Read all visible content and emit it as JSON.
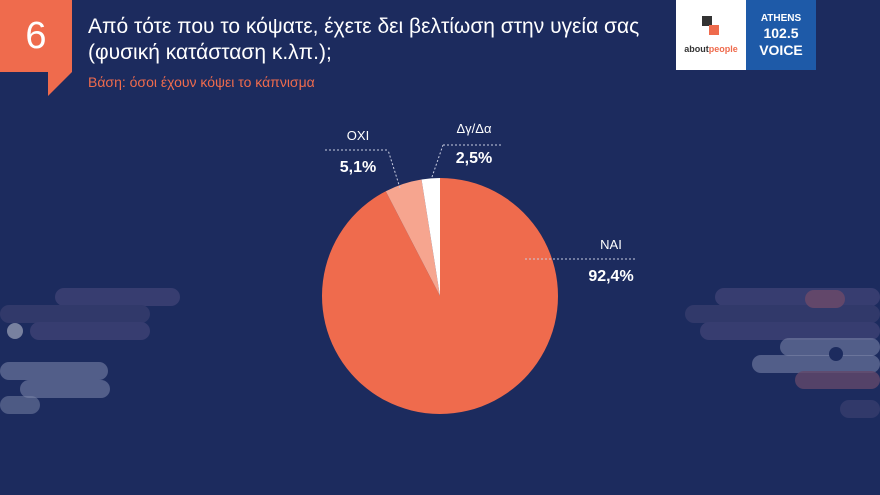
{
  "slide_number": "6",
  "title": "Από τότε που το κόψατε, έχετε δει βελτίωση στην υγεία σας (φυσική κατάσταση κ.λπ.);",
  "subtitle": "Βάση: όσοι έχουν κόψει το κάπνισμα",
  "logos": {
    "aboutpeople": {
      "part1": "about",
      "part2": "people"
    },
    "athens_voice": {
      "line1": "ATHENS",
      "line2": "102.5",
      "line3": "VOICE"
    }
  },
  "colors": {
    "background": "#1c2b5e",
    "accent": "#ef6b4d"
  },
  "chart_data": {
    "type": "pie",
    "categories": [
      "ΝΑΙ",
      "ΟΧΙ",
      "Δγ/Δα"
    ],
    "values": [
      92.4,
      5.1,
      2.5
    ],
    "labels": [
      "92,4%",
      "5,1%",
      "2,5%"
    ],
    "colors": [
      "#ef6b4d",
      "#f6a58f",
      "#ffffff"
    ],
    "start_angle_deg": 0,
    "direction": "clockwise"
  }
}
